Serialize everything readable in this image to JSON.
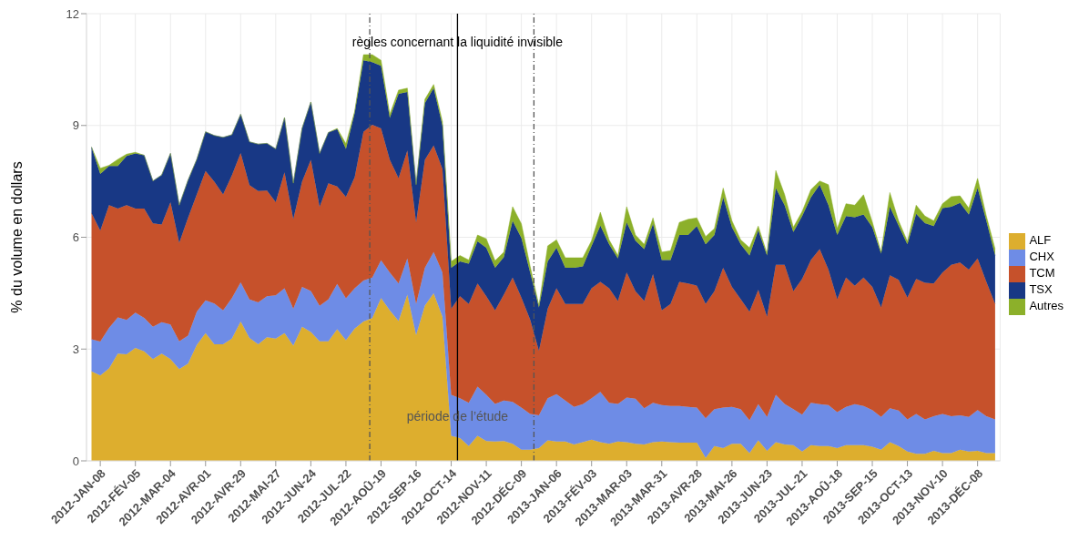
{
  "chart_data": {
    "type": "area",
    "stacked": true,
    "ylabel": "% du volume en dollars",
    "x": [
      "2012-01-01",
      "2012-01-08",
      "2012-01-15",
      "2012-01-22",
      "2012-01-29",
      "2012-02-05",
      "2012-02-12",
      "2012-02-19",
      "2012-02-26",
      "2012-03-04",
      "2012-03-11",
      "2012-03-18",
      "2012-03-25",
      "2012-04-01",
      "2012-04-08",
      "2012-04-15",
      "2012-04-22",
      "2012-04-29",
      "2012-05-06",
      "2012-05-13",
      "2012-05-20",
      "2012-05-27",
      "2012-06-03",
      "2012-06-10",
      "2012-06-17",
      "2012-06-24",
      "2012-07-01",
      "2012-07-08",
      "2012-07-15",
      "2012-07-22",
      "2012-07-29",
      "2012-08-05",
      "2012-08-12",
      "2012-08-19",
      "2012-08-26",
      "2012-09-02",
      "2012-09-09",
      "2012-09-16",
      "2012-09-23",
      "2012-09-30",
      "2012-10-07",
      "2012-10-14",
      "2012-10-21",
      "2012-10-28",
      "2012-11-04",
      "2012-11-11",
      "2012-11-18",
      "2012-11-25",
      "2012-12-02",
      "2012-12-09",
      "2012-12-16",
      "2012-12-23",
      "2012-12-30",
      "2013-01-06",
      "2013-01-13",
      "2013-01-20",
      "2013-01-27",
      "2013-02-03",
      "2013-02-10",
      "2013-02-17",
      "2013-02-24",
      "2013-03-03",
      "2013-03-10",
      "2013-03-17",
      "2013-03-24",
      "2013-03-31",
      "2013-04-07",
      "2013-04-14",
      "2013-04-21",
      "2013-04-28",
      "2013-05-05",
      "2013-05-12",
      "2013-05-19",
      "2013-05-26",
      "2013-06-02",
      "2013-06-09",
      "2013-06-16",
      "2013-06-23",
      "2013-06-30",
      "2013-07-07",
      "2013-07-14",
      "2013-07-21",
      "2013-07-28",
      "2013-08-04",
      "2013-08-11",
      "2013-08-18",
      "2013-08-25",
      "2013-09-01",
      "2013-09-08",
      "2013-09-15",
      "2013-09-22",
      "2013-09-29",
      "2013-10-06",
      "2013-10-13",
      "2013-10-20",
      "2013-10-27",
      "2013-11-03",
      "2013-11-10",
      "2013-11-17",
      "2013-11-24",
      "2013-12-01",
      "2013-12-08",
      "2013-12-15",
      "2013-12-22"
    ],
    "series": [
      {
        "name": "ALF",
        "color": "#ddae2e",
        "values": [
          2.4,
          2.29,
          2.48,
          2.88,
          2.86,
          3.03,
          2.94,
          2.73,
          2.88,
          2.73,
          2.46,
          2.61,
          3.11,
          3.43,
          3.13,
          3.13,
          3.28,
          3.74,
          3.3,
          3.13,
          3.32,
          3.28,
          3.43,
          3.09,
          3.6,
          3.46,
          3.21,
          3.21,
          3.53,
          3.24,
          3.55,
          3.74,
          3.83,
          4.37,
          4.04,
          3.75,
          4.46,
          3.37,
          4.17,
          4.5,
          3.87,
          0.67,
          0.61,
          0.4,
          0.67,
          0.53,
          0.52,
          0.53,
          0.46,
          0.3,
          0.3,
          0.34,
          0.55,
          0.52,
          0.52,
          0.44,
          0.5,
          0.57,
          0.5,
          0.46,
          0.52,
          0.5,
          0.46,
          0.44,
          0.5,
          0.52,
          0.5,
          0.49,
          0.49,
          0.49,
          0.08,
          0.4,
          0.34,
          0.46,
          0.46,
          0.21,
          0.55,
          0.27,
          0.5,
          0.44,
          0.42,
          0.25,
          0.42,
          0.4,
          0.4,
          0.34,
          0.42,
          0.42,
          0.42,
          0.38,
          0.3,
          0.5,
          0.4,
          0.25,
          0.19,
          0.19,
          0.27,
          0.21,
          0.21,
          0.3,
          0.25,
          0.27,
          0.21,
          0.21
        ]
      },
      {
        "name": "CHX",
        "color": "#6e8ce6",
        "values": [
          0.86,
          0.91,
          1.09,
          0.97,
          0.92,
          0.95,
          0.9,
          0.87,
          0.84,
          0.93,
          0.75,
          0.75,
          0.89,
          0.88,
          1.09,
          0.91,
          1.09,
          1.05,
          1.03,
          1.12,
          1.1,
          1.16,
          1.2,
          0.99,
          1.07,
          1.1,
          0.95,
          1.12,
          1.22,
          1.12,
          1.08,
          1.1,
          1.09,
          1.01,
          1.01,
          1.01,
          0.97,
          0.84,
          1.01,
          1.1,
          1.18,
          1.1,
          1.07,
          1.16,
          1.32,
          1.24,
          1.01,
          1.09,
          1.12,
          1.13,
          0.96,
          0.88,
          1.13,
          1.27,
          1.1,
          1.01,
          1.02,
          1.11,
          1.35,
          1.1,
          1.01,
          1.2,
          1.21,
          0.97,
          1.06,
          0.98,
          0.97,
          0.98,
          0.96,
          0.94,
          1.06,
          0.99,
          1.09,
          0.99,
          0.93,
          0.88,
          0.97,
          0.91,
          1.27,
          1.09,
          0.97,
          0.99,
          1.14,
          1.12,
          1.1,
          0.97,
          1.03,
          1.1,
          1.05,
          0.98,
          0.88,
          0.91,
          0.95,
          0.86,
          1.07,
          0.92,
          0.93,
          1.05,
          0.99,
          0.92,
          0.93,
          1.09,
          0.99,
          0.9
        ]
      },
      {
        "name": "TCM",
        "color": "#c6512b",
        "values": [
          3.39,
          2.98,
          3.29,
          2.92,
          3.08,
          2.79,
          2.93,
          2.77,
          2.62,
          3.28,
          2.64,
          3.16,
          3.15,
          3.47,
          3.27,
          3.11,
          3.29,
          3.47,
          3.07,
          2.99,
          2.83,
          2.5,
          3.11,
          2.4,
          2.82,
          3.52,
          2.65,
          3.12,
          2.61,
          2.72,
          2.98,
          3.99,
          4.1,
          3.54,
          3.03,
          2.82,
          2.9,
          2.19,
          2.9,
          2.86,
          2.78,
          2.31,
          2.74,
          2.65,
          2.77,
          2.65,
          2.51,
          2.84,
          3.34,
          2.95,
          2.53,
          1.73,
          2.4,
          2.84,
          2.59,
          2.76,
          2.69,
          2.95,
          2.95,
          3.07,
          2.76,
          3.35,
          2.88,
          2.88,
          3.45,
          2.54,
          2.74,
          3.33,
          3.31,
          3.27,
          3.07,
          3.16,
          3.75,
          3.22,
          2.95,
          2.91,
          3.07,
          2.69,
          3.49,
          3.73,
          3.16,
          3.64,
          3.83,
          4.16,
          3.63,
          3.03,
          3.47,
          3.18,
          3.45,
          3.31,
          2.94,
          3.57,
          3.51,
          3.27,
          3.62,
          3.67,
          3.56,
          3.79,
          4.06,
          4.1,
          3.95,
          4.07,
          3.6,
          3.1
        ]
      },
      {
        "name": "TSX",
        "color": "#183885",
        "values": [
          1.77,
          1.52,
          1.05,
          1.14,
          1.32,
          1.48,
          1.43,
          1.14,
          1.33,
          1.31,
          1.01,
          1.01,
          0.94,
          1.05,
          1.24,
          1.53,
          1.09,
          1.04,
          1.16,
          1.26,
          1.27,
          1.43,
          1.47,
          0.97,
          1.43,
          1.55,
          1.44,
          1.36,
          1.54,
          1.29,
          1.73,
          1.92,
          1.68,
          1.68,
          1.12,
          2.27,
          1.57,
          1.01,
          1.52,
          1.54,
          1.17,
          1.1,
          0.93,
          1.08,
          1.13,
          1.3,
          1.14,
          1.01,
          1.52,
          1.6,
          1.26,
          1.17,
          1.27,
          1.09,
          0.97,
          0.97,
          1.01,
          1.14,
          1.51,
          1.18,
          1.14,
          1.35,
          1.36,
          1.39,
          1.35,
          1.35,
          1.18,
          1.26,
          1.3,
          1.6,
          1.6,
          1.51,
          1.89,
          1.6,
          1.47,
          1.51,
          1.6,
          1.64,
          2.06,
          1.6,
          1.59,
          1.69,
          1.68,
          1.73,
          1.73,
          1.72,
          1.65,
          1.84,
          1.69,
          1.6,
          1.44,
          1.84,
          1.45,
          1.43,
          1.75,
          1.6,
          1.54,
          1.73,
          1.56,
          1.6,
          1.48,
          1.89,
          1.64,
          1.3
        ]
      },
      {
        "name": "Autres",
        "color": "#8cb02a",
        "values": [
          0,
          0.15,
          0.02,
          0.18,
          0.05,
          0.03,
          0,
          0,
          0,
          0,
          0,
          0,
          0,
          0,
          0,
          0,
          0,
          0,
          0,
          0,
          0,
          0,
          0,
          0,
          0,
          0,
          0,
          0,
          0.02,
          0.14,
          0.04,
          0.15,
          0.2,
          0.15,
          0.1,
          0.1,
          0.1,
          0,
          0.1,
          0.1,
          0.1,
          0.17,
          0.16,
          0.1,
          0.17,
          0.24,
          0.19,
          0.13,
          0.38,
          0.38,
          0.17,
          0.05,
          0.42,
          0.21,
          0.27,
          0.27,
          0.23,
          0.14,
          0.36,
          0.12,
          0.08,
          0.42,
          0.15,
          0.13,
          0.16,
          0.21,
          0.25,
          0.34,
          0.42,
          0.22,
          0.21,
          0.17,
          0.25,
          0.17,
          0.12,
          0.21,
          0.11,
          0.05,
          0.47,
          0.29,
          0.13,
          0.12,
          0.21,
          0.1,
          0.55,
          0.17,
          0.33,
          0.32,
          0.53,
          0.14,
          0.04,
          0.38,
          0.13,
          0.08,
          0.23,
          0.19,
          0.14,
          0.12,
          0.27,
          0.19,
          0.17,
          0.26,
          0.13,
          0.17
        ]
      }
    ],
    "xlim": [
      "2011-12-28",
      "2013-12-26"
    ],
    "xticks": [
      {
        "value": "2012-01-08",
        "label": "2012-JAN-08"
      },
      {
        "value": "2012-02-05",
        "label": "2012-FÉV-05"
      },
      {
        "value": "2012-03-04",
        "label": "2012-MAR-04"
      },
      {
        "value": "2012-04-01",
        "label": "2012-AVR-01"
      },
      {
        "value": "2012-04-29",
        "label": "2012-AVR-29"
      },
      {
        "value": "2012-05-27",
        "label": "2012-MAI-27"
      },
      {
        "value": "2012-06-24",
        "label": "2012-JUN-24"
      },
      {
        "value": "2012-07-22",
        "label": "2012-JUL-22"
      },
      {
        "value": "2012-08-19",
        "label": "2012-AOÛ-19"
      },
      {
        "value": "2012-09-16",
        "label": "2012-SEP-16"
      },
      {
        "value": "2012-10-14",
        "label": "2012-OCT-14"
      },
      {
        "value": "2012-11-11",
        "label": "2012-NOV-11"
      },
      {
        "value": "2012-12-09",
        "label": "2012-DÉC-09"
      },
      {
        "value": "2013-01-06",
        "label": "2013-JAN-06"
      },
      {
        "value": "2013-02-03",
        "label": "2013-FÉV-03"
      },
      {
        "value": "2013-03-03",
        "label": "2013-MAR-03"
      },
      {
        "value": "2013-03-31",
        "label": "2013-MAR-31"
      },
      {
        "value": "2013-04-28",
        "label": "2013-AVR-28"
      },
      {
        "value": "2013-05-26",
        "label": "2013-MAI-26"
      },
      {
        "value": "2013-06-23",
        "label": "2013-JUN-23"
      },
      {
        "value": "2013-07-21",
        "label": "2013-JUL-21"
      },
      {
        "value": "2013-08-18",
        "label": "2013-AOÛ-18"
      },
      {
        "value": "2013-09-15",
        "label": "2013-SEP-15"
      },
      {
        "value": "2013-10-13",
        "label": "2013-OCT-13"
      },
      {
        "value": "2013-11-10",
        "label": "2013-NOV-10"
      },
      {
        "value": "2013-12-08",
        "label": "2013-DÉC-08"
      }
    ],
    "ylim": [
      0,
      12
    ],
    "yticks": [
      0,
      3,
      6,
      9,
      12
    ],
    "grid": true,
    "legend": "right",
    "ref_lines": [
      {
        "axis": "x",
        "value": "2012-08-10",
        "line_style": "dashed",
        "color": "#555555"
      },
      {
        "axis": "x",
        "value": "2012-10-19",
        "line_style": "solid",
        "color": "#000000",
        "label": "règles concernant la liquidité invisible"
      },
      {
        "axis": "x",
        "value": "2012-12-19",
        "line_style": "dashed",
        "color": "#555555"
      }
    ],
    "annotations": [
      {
        "text": "période de l’étude",
        "x": "2012-10-19",
        "y": 1.2
      }
    ]
  }
}
